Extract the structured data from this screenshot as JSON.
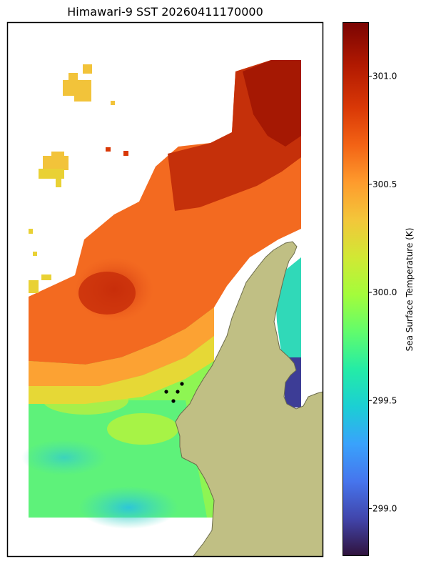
{
  "title": "Himawari-9 SST 20260411170000",
  "colorbar": {
    "label": "Sea Surface Temperature (K)",
    "range": [
      298.78,
      301.25
    ],
    "ticks": [
      "301.0",
      "300.5",
      "300.0",
      "299.5",
      "299.0"
    ],
    "tick_values": [
      301.0,
      300.5,
      300.0,
      299.5,
      299.0
    ],
    "colormap": "turbo"
  },
  "colors": {
    "land": "#c0bf84",
    "coast": "#6b6b4a",
    "marker": "#000000"
  },
  "markers_count": 4
}
